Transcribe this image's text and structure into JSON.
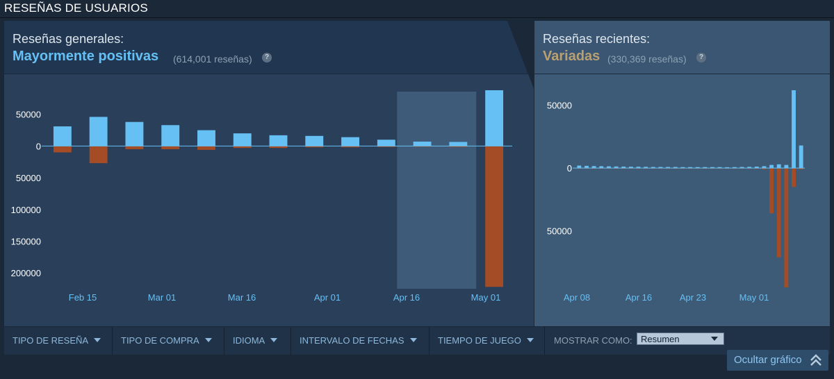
{
  "header": {
    "title": "RESEÑAS DE USUARIOS"
  },
  "overall": {
    "label": "Reseñas generales:",
    "score": "Mayormente positivas",
    "count": "(614,001 reseñas)",
    "help": "?",
    "score_color": "#66c0f4"
  },
  "recent": {
    "label": "Reseñas recientes:",
    "score": "Variadas",
    "count": "(330,369 reseñas)",
    "help": "?",
    "score_color": "#b9a074"
  },
  "chart_data": [
    {
      "type": "bar",
      "id": "overall",
      "x_tick_labels": [
        "Feb 15",
        "Mar 01",
        "Mar 16",
        "Apr 01",
        "Apr 16",
        "May 01"
      ],
      "y_tick_labels": [
        "50000",
        "0",
        "50000",
        "100000",
        "150000",
        "200000"
      ],
      "y_tick_values": [
        50000,
        0,
        -50000,
        -100000,
        -150000,
        -200000
      ],
      "ylim": [
        -225000,
        88000
      ],
      "highlight_range_bars": [
        10,
        12
      ],
      "series": [
        {
          "color": "#66c0f4",
          "values": [
            31000,
            46000,
            38000,
            33000,
            25000,
            20000,
            17000,
            16000,
            14000,
            10000,
            7000,
            6500,
            88000
          ]
        },
        {
          "color": "#a34c25",
          "values": [
            -10000,
            -27000,
            -5000,
            -5000,
            -6000,
            -3000,
            -3000,
            -2000,
            -2000,
            -1500,
            -1000,
            -1500,
            -222000
          ]
        }
      ]
    },
    {
      "type": "bar",
      "id": "recent",
      "x_tick_labels": [
        "Apr 08",
        "Apr 16",
        "Apr 23",
        "May 01"
      ],
      "y_tick_labels": [
        "50000",
        "0",
        "50000"
      ],
      "y_tick_values": [
        50000,
        0,
        -50000
      ],
      "ylim": [
        -95000,
        62000
      ],
      "series": [
        {
          "color": "#66c0f4",
          "values": [
            2000,
            1800,
            1600,
            1500,
            1400,
            1300,
            1200,
            1100,
            1100,
            1000,
            900,
            900,
            900,
            900,
            800,
            800,
            800,
            800,
            800,
            800,
            700,
            800,
            900,
            1000,
            1200,
            1500,
            2500,
            3000,
            2500,
            62000,
            18000
          ]
        },
        {
          "color": "#a34c25",
          "values": [
            -300,
            -300,
            -300,
            -300,
            -300,
            -300,
            -300,
            -300,
            -300,
            -300,
            -300,
            -300,
            -300,
            -300,
            -300,
            -300,
            -300,
            -300,
            -300,
            -300,
            -300,
            -300,
            -400,
            -500,
            -600,
            -1000,
            -36000,
            -71000,
            -95000,
            -15000,
            -1000
          ]
        }
      ]
    }
  ],
  "filters": [
    {
      "label": "TIPO DE RESEÑA"
    },
    {
      "label": "TIPO DE COMPRA"
    },
    {
      "label": "IDIOMA"
    },
    {
      "label": "INTERVALO DE FECHAS"
    },
    {
      "label": "TIEMPO DE JUEGO"
    }
  ],
  "display": {
    "label": "MOSTRAR COMO:",
    "selected": "Resumen"
  },
  "hide_graph": {
    "label": "Ocultar gráfico",
    "icon": "double-chevron-up-icon"
  }
}
